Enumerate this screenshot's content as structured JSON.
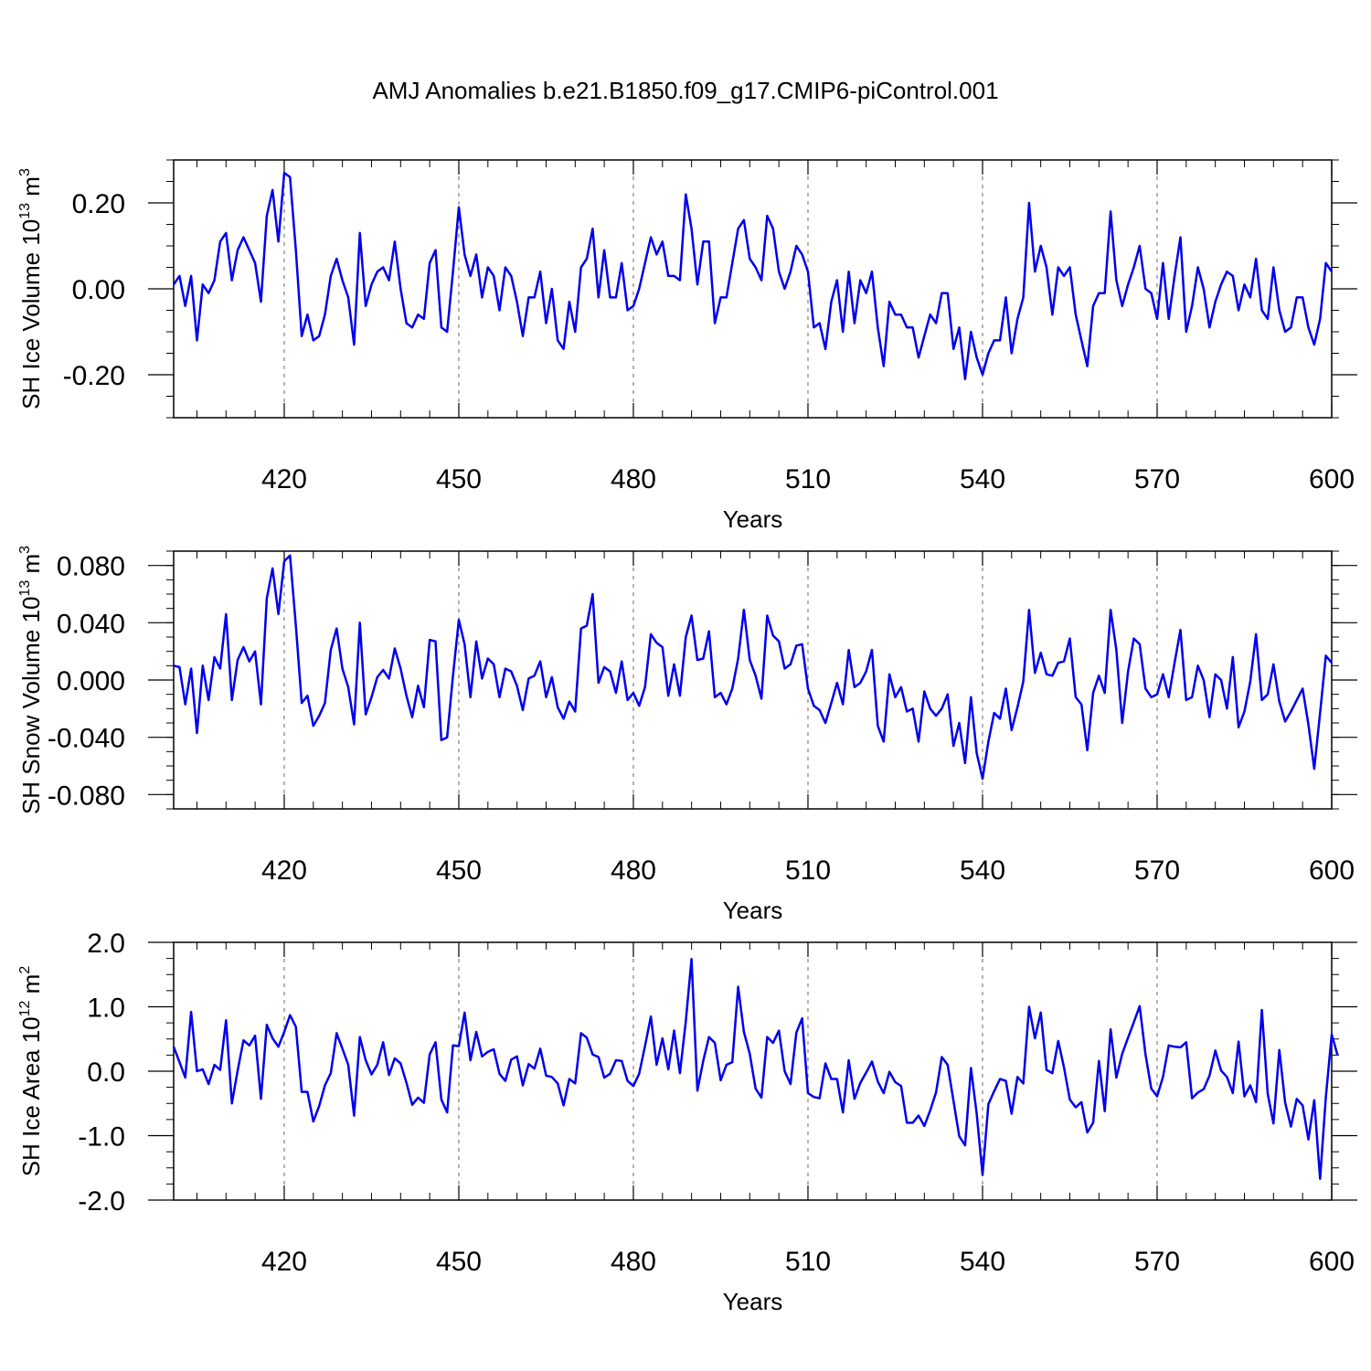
{
  "figure_title": "AMJ Anomalies b.e21.B1850.f09_g17.CMIP6-piControl.001",
  "colors": {
    "line": "#0000ee",
    "axis": "#000000",
    "grid": "#666666"
  },
  "chart_data": [
    {
      "type": "line",
      "ylabel": "SH Ice Volume 10",
      "ylabel_sup": "13",
      "ylabel_unit": " m",
      "ylabel_unit_sup": "3",
      "xlabel": "Years",
      "xlim": [
        401,
        600
      ],
      "ylim": [
        -0.3,
        0.3
      ],
      "xticks": [
        420,
        450,
        480,
        510,
        540,
        570,
        600
      ],
      "xtick_labels": [
        "420",
        "450",
        "480",
        "510",
        "540",
        "570",
        "600"
      ],
      "yticks": [
        0.2,
        0.0,
        -0.2
      ],
      "ytick_labels": [
        "0.20",
        "0.00",
        "-0.20"
      ],
      "grid": "vertical dashed at major x ticks",
      "x_start": 401,
      "values": [
        0.01,
        0.03,
        -0.04,
        0.03,
        -0.12,
        0.01,
        -0.01,
        0.02,
        0.11,
        0.13,
        0.02,
        0.09,
        0.12,
        0.09,
        0.06,
        -0.03,
        0.17,
        0.23,
        0.11,
        0.27,
        0.26,
        0.09,
        -0.11,
        -0.06,
        -0.12,
        -0.11,
        -0.06,
        0.03,
        0.07,
        0.02,
        -0.02,
        -0.13,
        0.13,
        -0.04,
        0.01,
        0.04,
        0.05,
        0.02,
        0.11,
        0.0,
        -0.08,
        -0.09,
        -0.06,
        -0.07,
        0.06,
        0.09,
        -0.09,
        -0.1,
        0.04,
        0.19,
        0.08,
        0.03,
        0.08,
        -0.02,
        0.05,
        0.03,
        -0.05,
        0.05,
        0.03,
        -0.03,
        -0.11,
        -0.02,
        -0.02,
        0.04,
        -0.08,
        0.0,
        -0.12,
        -0.14,
        -0.03,
        -0.1,
        0.05,
        0.07,
        0.14,
        -0.02,
        0.09,
        -0.02,
        -0.02,
        0.06,
        -0.05,
        -0.04,
        0.0,
        0.06,
        0.12,
        0.08,
        0.11,
        0.03,
        0.03,
        0.02,
        0.22,
        0.14,
        0.01,
        0.11,
        0.11,
        -0.08,
        -0.02,
        -0.02,
        0.06,
        0.14,
        0.16,
        0.07,
        0.05,
        0.02,
        0.17,
        0.14,
        0.04,
        0.0,
        0.04,
        0.1,
        0.08,
        0.04,
        -0.09,
        -0.08,
        -0.14,
        -0.03,
        0.02,
        -0.1,
        0.04,
        -0.08,
        0.02,
        -0.01,
        0.04,
        -0.09,
        -0.18,
        -0.03,
        -0.06,
        -0.06,
        -0.09,
        -0.09,
        -0.16,
        -0.11,
        -0.06,
        -0.08,
        -0.01,
        -0.01,
        -0.14,
        -0.09,
        -0.21,
        -0.1,
        -0.16,
        -0.2,
        -0.15,
        -0.12,
        -0.12,
        -0.02,
        -0.15,
        -0.07,
        -0.02,
        0.2,
        0.04,
        0.1,
        0.05,
        -0.06,
        0.05,
        0.03,
        0.05,
        -0.06,
        -0.12,
        -0.18,
        -0.04,
        -0.01,
        -0.01,
        0.18,
        0.02,
        -0.04,
        0.01,
        0.05,
        0.1,
        0.0,
        -0.01,
        -0.07,
        0.06,
        -0.07,
        0.03,
        0.12,
        -0.1,
        -0.04,
        0.05,
        0.0,
        -0.09,
        -0.03,
        0.01,
        0.04,
        0.03,
        -0.05,
        0.01,
        -0.02,
        0.07,
        -0.05,
        -0.07,
        0.05,
        -0.05,
        -0.1,
        -0.09,
        -0.02,
        -0.02,
        -0.09,
        -0.13,
        -0.07,
        0.06,
        0.04
      ]
    },
    {
      "type": "line",
      "ylabel": "SH Snow Volume 10",
      "ylabel_sup": "13",
      "ylabel_unit": " m",
      "ylabel_unit_sup": "3",
      "xlabel": "Years",
      "xlim": [
        401,
        600
      ],
      "ylim": [
        -0.09,
        0.09
      ],
      "xticks": [
        420,
        450,
        480,
        510,
        540,
        570,
        600
      ],
      "xtick_labels": [
        "420",
        "450",
        "480",
        "510",
        "540",
        "570",
        "600"
      ],
      "yticks": [
        0.08,
        0.04,
        0.0,
        -0.04,
        -0.08
      ],
      "ytick_labels": [
        "0.080",
        "0.040",
        "0.000",
        "-0.040",
        "-0.080"
      ],
      "grid": "vertical dashed at major x ticks",
      "x_start": 401,
      "values": [
        0.01,
        0.009,
        -0.017,
        0.008,
        -0.037,
        0.01,
        -0.014,
        0.016,
        0.008,
        0.046,
        -0.014,
        0.014,
        0.023,
        0.013,
        0.02,
        -0.017,
        0.057,
        0.078,
        0.046,
        0.083,
        0.087,
        0.038,
        -0.016,
        -0.011,
        -0.032,
        -0.025,
        -0.016,
        0.021,
        0.036,
        0.008,
        -0.005,
        -0.031,
        0.04,
        -0.024,
        -0.012,
        0.002,
        0.007,
        0.001,
        0.022,
        0.008,
        -0.011,
        -0.026,
        -0.004,
        -0.019,
        0.028,
        0.027,
        -0.042,
        -0.04,
        0.003,
        0.042,
        0.025,
        -0.012,
        0.027,
        0.001,
        0.015,
        0.011,
        -0.012,
        0.008,
        0.006,
        -0.004,
        -0.021,
        0.001,
        0.003,
        0.013,
        -0.012,
        0.002,
        -0.019,
        -0.027,
        -0.015,
        -0.022,
        0.036,
        0.038,
        0.06,
        -0.002,
        0.009,
        0.006,
        -0.009,
        0.013,
        -0.014,
        -0.009,
        -0.018,
        -0.005,
        0.032,
        0.026,
        0.023,
        -0.011,
        0.011,
        -0.011,
        0.03,
        0.045,
        0.014,
        0.015,
        0.034,
        -0.012,
        -0.009,
        -0.017,
        -0.006,
        0.015,
        0.049,
        0.014,
        0.003,
        -0.013,
        0.045,
        0.031,
        0.027,
        0.008,
        0.011,
        0.024,
        0.025,
        -0.006,
        -0.018,
        -0.021,
        -0.03,
        -0.016,
        -0.002,
        -0.017,
        0.021,
        -0.005,
        -0.002,
        0.006,
        0.021,
        -0.032,
        -0.043,
        0.004,
        -0.012,
        -0.005,
        -0.022,
        -0.02,
        -0.043,
        -0.008,
        -0.02,
        -0.025,
        -0.02,
        -0.01,
        -0.046,
        -0.03,
        -0.058,
        -0.012,
        -0.051,
        -0.069,
        -0.043,
        -0.023,
        -0.027,
        -0.006,
        -0.035,
        -0.019,
        -0.001,
        0.049,
        0.005,
        0.019,
        0.004,
        0.003,
        0.012,
        0.013,
        0.029,
        -0.012,
        -0.017,
        -0.049,
        -0.009,
        0.003,
        -0.009,
        0.049,
        0.021,
        -0.03,
        0.006,
        0.029,
        0.025,
        -0.006,
        -0.012,
        -0.01,
        0.004,
        -0.012,
        0.012,
        0.035,
        -0.014,
        -0.012,
        0.01,
        0.0,
        -0.026,
        0.004,
        0.0,
        -0.02,
        0.016,
        -0.033,
        -0.022,
        -0.001,
        0.032,
        -0.014,
        -0.01,
        0.011,
        -0.015,
        -0.029,
        -0.022,
        -0.014,
        -0.006,
        -0.031,
        -0.062,
        -0.023,
        0.017,
        0.012
      ]
    },
    {
      "type": "line",
      "ylabel": "SH Ice Area 10",
      "ylabel_sup": "12",
      "ylabel_unit": " m",
      "ylabel_unit_sup": "2",
      "xlabel": "Years",
      "xlim": [
        401,
        600
      ],
      "ylim": [
        -2.0,
        2.0
      ],
      "xticks": [
        420,
        450,
        480,
        510,
        540,
        570,
        600
      ],
      "xtick_labels": [
        "420",
        "450",
        "480",
        "510",
        "540",
        "570",
        "600"
      ],
      "yticks": [
        2.0,
        1.0,
        0.0,
        -1.0,
        -2.0
      ],
      "ytick_labels": [
        "2.0",
        "1.0",
        "0.0",
        "-1.0",
        "-2.0"
      ],
      "grid": "vertical dashed at major x ticks",
      "x_start": 401,
      "values": [
        0.38,
        0.14,
        -0.1,
        0.92,
        0.0,
        0.03,
        -0.2,
        0.1,
        0.02,
        0.79,
        -0.5,
        0.01,
        0.48,
        0.4,
        0.55,
        -0.43,
        0.72,
        0.51,
        0.38,
        0.61,
        0.87,
        0.69,
        -0.32,
        -0.32,
        -0.78,
        -0.54,
        -0.22,
        -0.03,
        0.59,
        0.35,
        0.1,
        -0.69,
        0.53,
        0.17,
        -0.05,
        0.1,
        0.45,
        -0.06,
        0.2,
        0.12,
        -0.18,
        -0.52,
        -0.41,
        -0.49,
        0.26,
        0.45,
        -0.44,
        -0.64,
        0.4,
        0.39,
        0.91,
        0.17,
        0.61,
        0.23,
        0.3,
        0.34,
        -0.04,
        -0.15,
        0.18,
        0.23,
        -0.22,
        0.11,
        0.04,
        0.35,
        -0.07,
        -0.09,
        -0.19,
        -0.53,
        -0.12,
        -0.19,
        0.59,
        0.52,
        0.26,
        0.22,
        -0.1,
        -0.04,
        0.17,
        0.16,
        -0.15,
        -0.23,
        -0.04,
        0.39,
        0.85,
        0.1,
        0.51,
        0.03,
        0.63,
        -0.03,
        0.77,
        1.74,
        -0.3,
        0.16,
        0.53,
        0.44,
        -0.14,
        0.1,
        0.14,
        1.31,
        0.61,
        0.27,
        -0.27,
        -0.41,
        0.53,
        0.44,
        0.63,
        0.0,
        -0.2,
        0.6,
        0.82,
        -0.34,
        -0.4,
        -0.42,
        0.12,
        -0.12,
        -0.12,
        -0.64,
        0.17,
        -0.43,
        -0.18,
        -0.02,
        0.15,
        -0.16,
        -0.34,
        -0.01,
        -0.17,
        -0.23,
        -0.8,
        -0.8,
        -0.69,
        -0.85,
        -0.61,
        -0.33,
        0.22,
        0.1,
        -0.46,
        -1.01,
        -1.15,
        0.05,
        -0.66,
        -1.61,
        -0.51,
        -0.31,
        -0.12,
        -0.15,
        -0.66,
        -0.09,
        -0.19,
        1.0,
        0.51,
        0.91,
        0.02,
        -0.03,
        0.47,
        0.06,
        -0.44,
        -0.56,
        -0.48,
        -0.95,
        -0.8,
        0.16,
        -0.62,
        0.65,
        -0.1,
        0.27,
        0.52,
        0.76,
        1.01,
        0.26,
        -0.27,
        -0.39,
        -0.09,
        0.4,
        0.38,
        0.37,
        0.45,
        -0.42,
        -0.33,
        -0.28,
        -0.07,
        0.32,
        0.01,
        -0.09,
        -0.34,
        0.46,
        -0.39,
        -0.22,
        -0.48,
        0.95,
        -0.35,
        -0.81,
        0.33,
        -0.49,
        -0.86,
        -0.43,
        -0.53,
        -1.06,
        -0.45,
        -1.67,
        -0.4,
        0.57,
        0.25
      ]
    }
  ]
}
